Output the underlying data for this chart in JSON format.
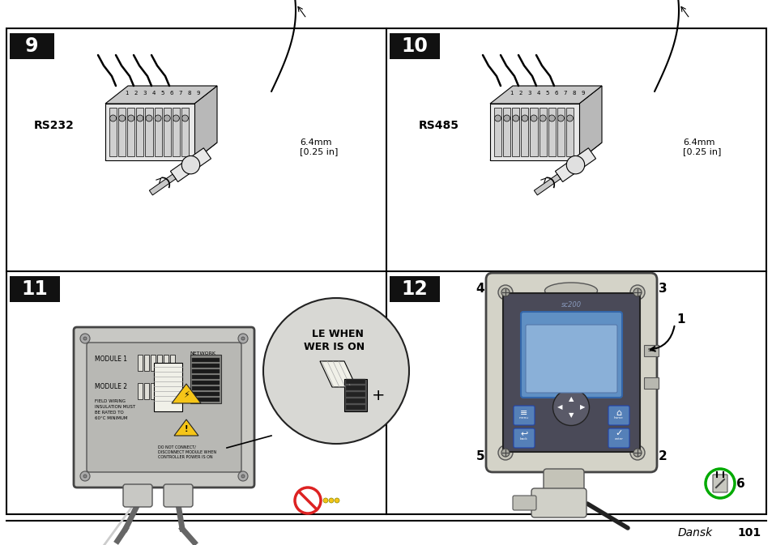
{
  "page_bg": "#ffffff",
  "border_color": "#000000",
  "header_bg": "#1a1a1a",
  "header_text_color": "#ffffff",
  "footer_italic": "Dansk",
  "footer_bold": "101",
  "warn_text_top": "LE WHEN",
  "warn_text_bot": "WER IS ON",
  "panel9_label": "RS232",
  "panel10_label": "RS485",
  "measurement": "6.4mm\n[0.25 in]",
  "module1_text": "MODULE 1",
  "module2_text": "MODULE 2",
  "network_text": "NETWORK",
  "field_wiring": "FIELD WIRING\nINSULATION MUST\nBE RATED TO\n60°C MINIMUM",
  "do_not_text": "DO NOT CONNECT/\nDISCONNECT MODULE WHEN\nCONTROLLER POWER IS ON",
  "sc200_text": "sc200"
}
